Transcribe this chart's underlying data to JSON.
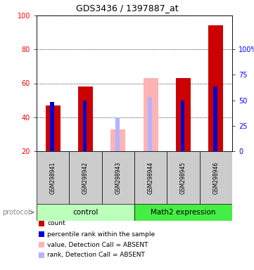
{
  "title": "GDS3436 / 1397887_at",
  "samples": [
    "GSM298941",
    "GSM298942",
    "GSM298943",
    "GSM298944",
    "GSM298945",
    "GSM298946"
  ],
  "count_values": [
    47,
    58,
    null,
    null,
    63,
    94
  ],
  "rank_values": [
    49,
    50,
    null,
    null,
    50,
    58
  ],
  "absent_count_values": [
    null,
    null,
    33,
    63,
    null,
    null
  ],
  "absent_rank_values": [
    null,
    null,
    40,
    52,
    null,
    null
  ],
  "ylim": [
    20,
    100
  ],
  "yticks_left": [
    20,
    40,
    60,
    80,
    100
  ],
  "yticks_right_labels": [
    "0",
    "25",
    "50",
    "75",
    "100%"
  ],
  "yticks_right_values": [
    20,
    35,
    50,
    65,
    80
  ],
  "groups": [
    {
      "label": "control",
      "n": 3,
      "color": "#bbffbb"
    },
    {
      "label": "Math2 expression",
      "n": 3,
      "color": "#44ee44"
    }
  ],
  "protocol_label": "protocol",
  "count_bar_width": 0.45,
  "rank_bar_width": 0.12,
  "count_color": "#cc0000",
  "rank_color": "#0000cc",
  "absent_count_color": "#ffb3b3",
  "absent_rank_color": "#b3b3ff",
  "bar_bottom": 20,
  "label_area_color": "#cccccc",
  "legend_items": [
    {
      "color": "#cc0000",
      "label": "count"
    },
    {
      "color": "#0000cc",
      "label": "percentile rank within the sample"
    },
    {
      "color": "#ffb3b3",
      "label": "value, Detection Call = ABSENT"
    },
    {
      "color": "#b3b3ff",
      "label": "rank, Detection Call = ABSENT"
    }
  ]
}
